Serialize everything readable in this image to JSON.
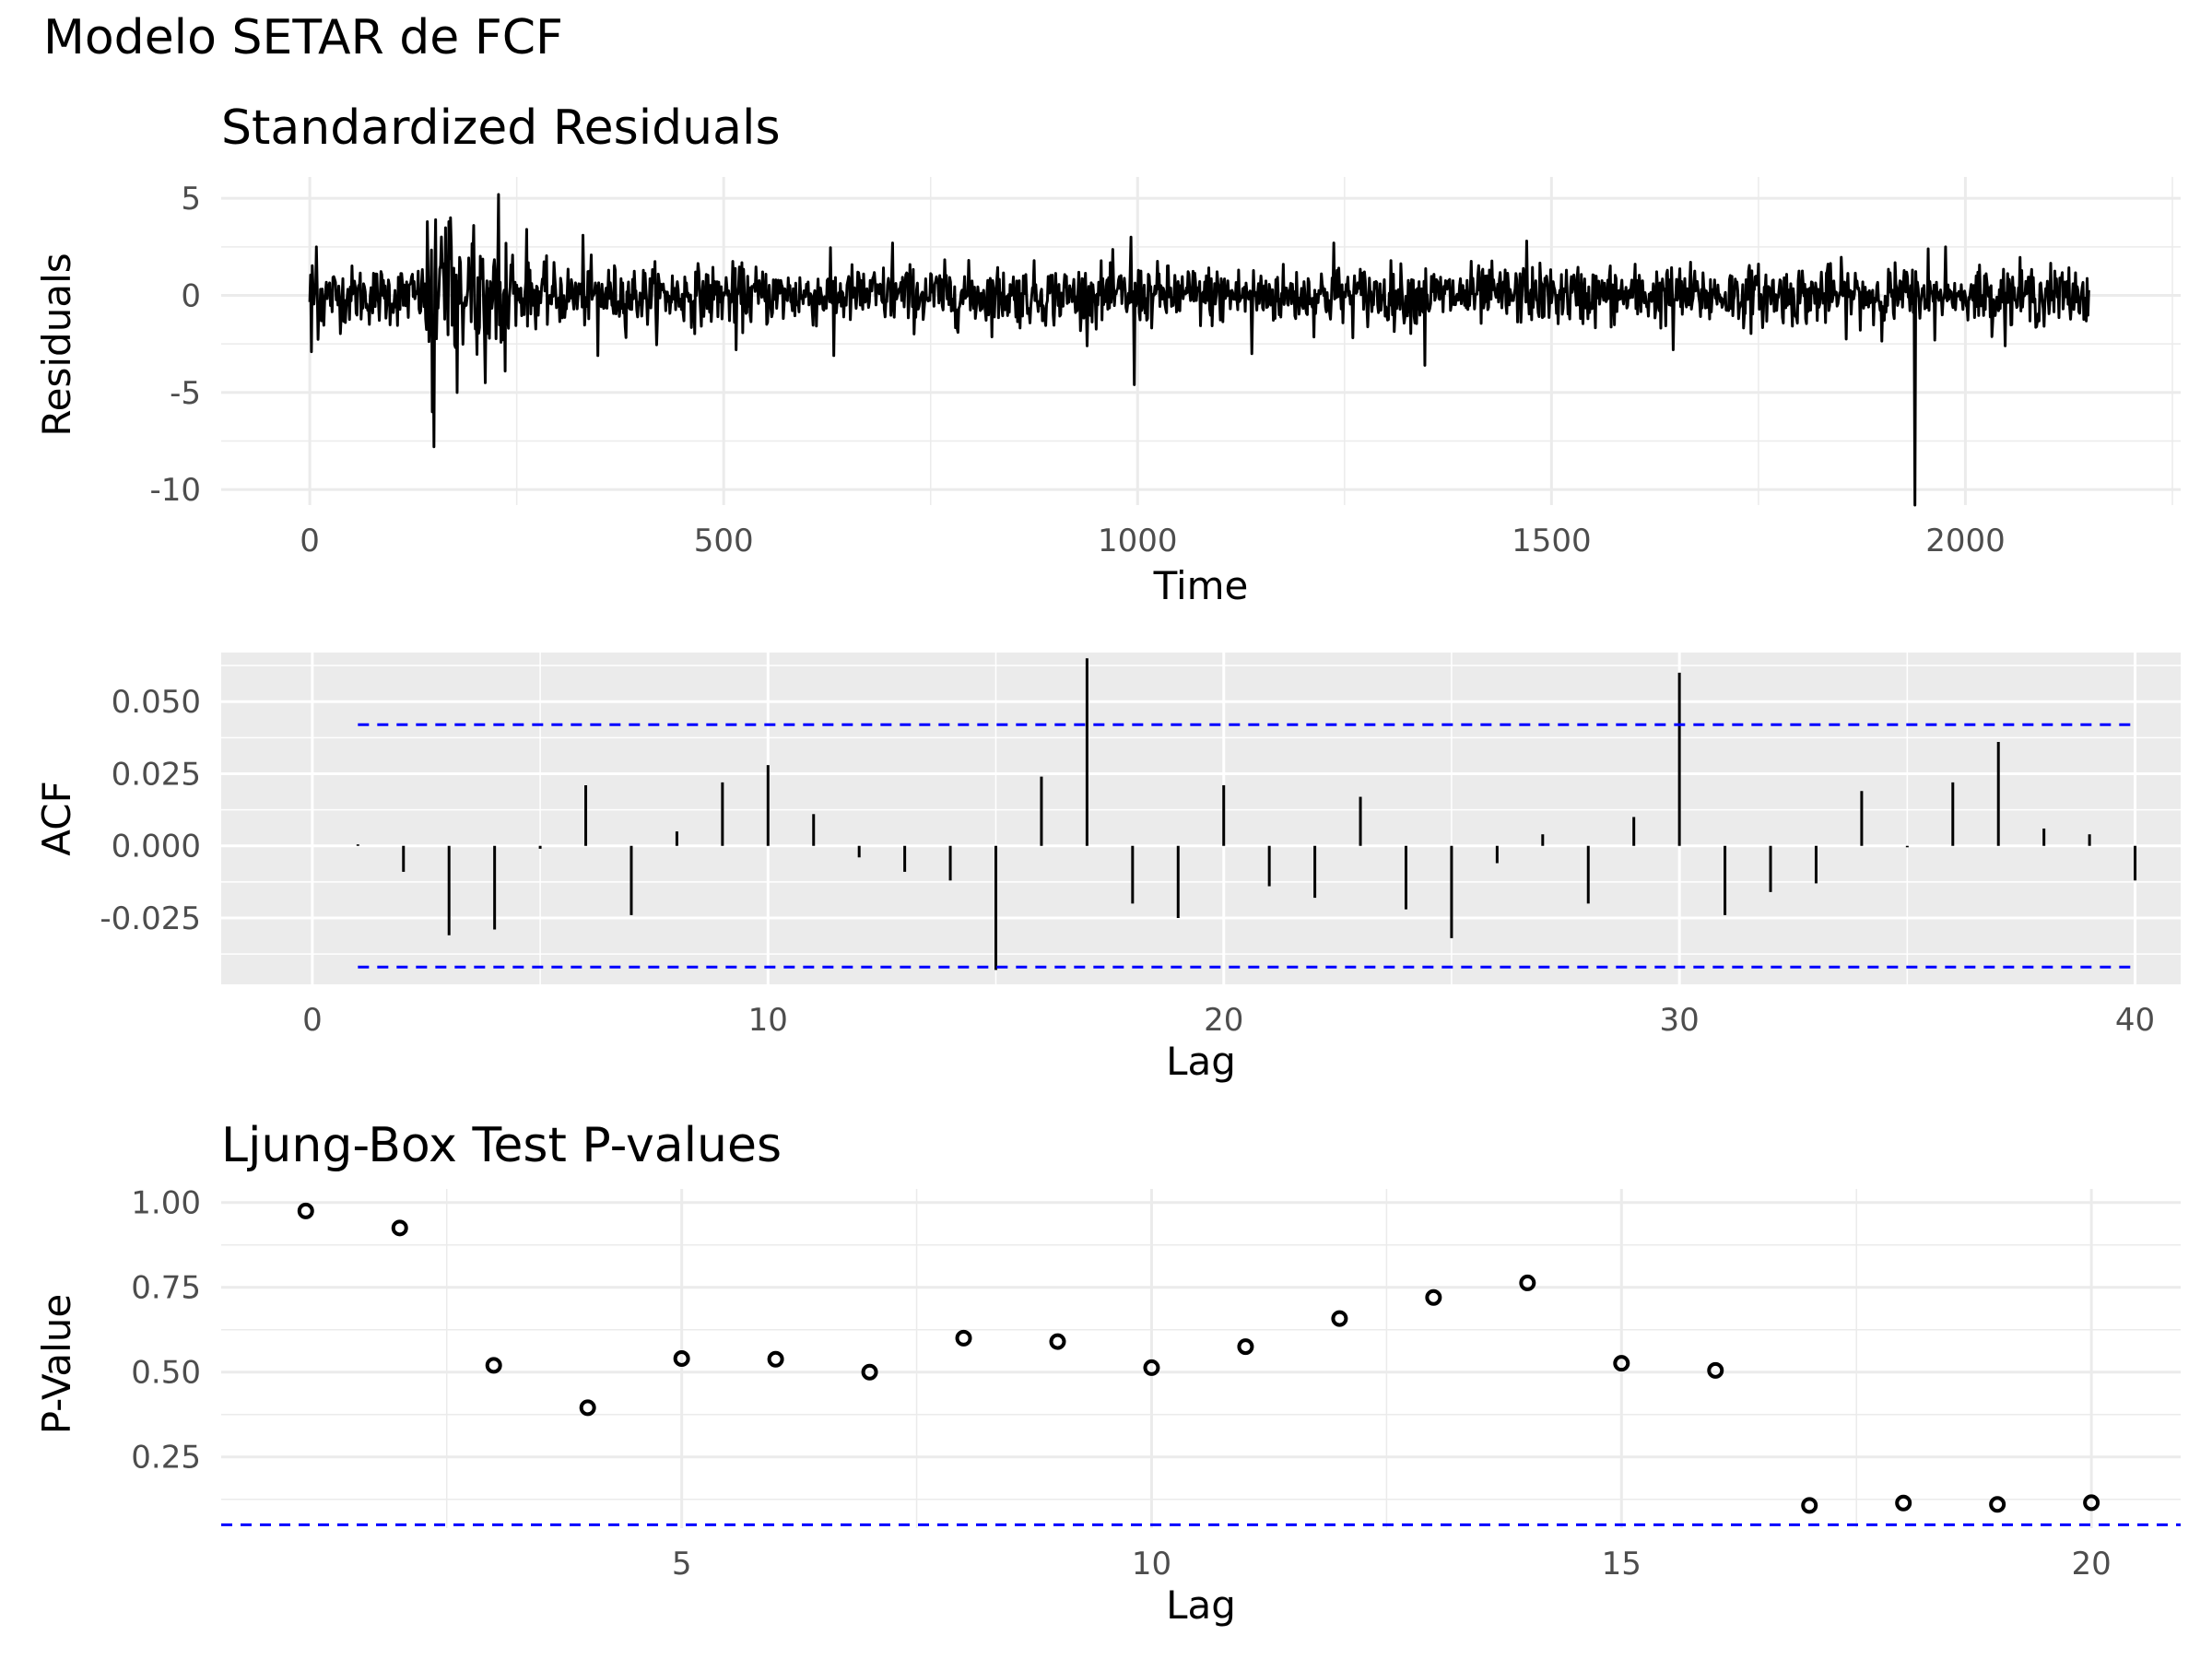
{
  "title": "Modelo SETAR de FCF",
  "chart_data": [
    {
      "type": "line",
      "title": "Standardized Residuals",
      "xlabel": "Time",
      "ylabel": "Residuals",
      "xlim": [
        -107,
        2260
      ],
      "ylim": [
        -10.8,
        6.1
      ],
      "xticks": [
        0,
        500,
        1000,
        1500,
        2000
      ],
      "xtick_labels": [
        "0",
        "500",
        "1000",
        "1500",
        "2000"
      ],
      "yticks": [
        5,
        0,
        -5,
        -10
      ],
      "ytick_labels": [
        "5",
        "0",
        "-5",
        "-10"
      ],
      "n_points": 2150,
      "grid": true,
      "theme": "minimal",
      "line_color": "#000000",
      "notable_points": [
        {
          "x": 2,
          "y": -2.9
        },
        {
          "x": 8,
          "y": 2.5
        },
        {
          "x": 148,
          "y": -6.0
        },
        {
          "x": 150,
          "y": -7.8
        },
        {
          "x": 152,
          "y": 3.9
        },
        {
          "x": 170,
          "y": 4.0
        },
        {
          "x": 178,
          "y": -5.0
        },
        {
          "x": 198,
          "y": 3.6
        },
        {
          "x": 212,
          "y": -4.5
        },
        {
          "x": 228,
          "y": 5.2
        },
        {
          "x": 236,
          "y": -3.9
        },
        {
          "x": 262,
          "y": 3.4
        },
        {
          "x": 330,
          "y": 3.1
        },
        {
          "x": 348,
          "y": -3.1
        },
        {
          "x": 515,
          "y": -2.8
        },
        {
          "x": 633,
          "y": -3.1
        },
        {
          "x": 704,
          "y": 2.7
        },
        {
          "x": 992,
          "y": 3.0
        },
        {
          "x": 996,
          "y": -4.6
        },
        {
          "x": 1138,
          "y": -3.0
        },
        {
          "x": 1237,
          "y": 2.7
        },
        {
          "x": 1347,
          "y": -3.6
        },
        {
          "x": 1470,
          "y": 2.8
        },
        {
          "x": 1647,
          "y": -2.8
        },
        {
          "x": 1939,
          "y": -10.8
        },
        {
          "x": 1955,
          "y": 2.4
        },
        {
          "x": 1963,
          "y": -2.3
        },
        {
          "x": 1976,
          "y": 2.5
        }
      ]
    },
    {
      "type": "bar",
      "title": "",
      "xlabel": "Lag",
      "ylabel": "ACF",
      "xlim": [
        -2,
        41
      ],
      "ylim": [
        -0.048,
        0.067
      ],
      "xticks": [
        0,
        10,
        20,
        30,
        40
      ],
      "xtick_labels": [
        "0",
        "10",
        "20",
        "30",
        "40"
      ],
      "yticks": [
        0.05,
        0.025,
        0.0,
        -0.025
      ],
      "ytick_labels": [
        "0.050",
        "0.025",
        "0.000",
        "-0.025"
      ],
      "grid": true,
      "theme": "grey",
      "confidence_bounds": [
        0.042,
        -0.042
      ],
      "confidence_color": "#0000ff",
      "x": [
        1,
        2,
        3,
        4,
        5,
        6,
        7,
        8,
        9,
        10,
        11,
        12,
        13,
        14,
        15,
        16,
        17,
        18,
        19,
        20,
        21,
        22,
        23,
        24,
        25,
        26,
        27,
        28,
        29,
        30,
        31,
        32,
        33,
        34,
        35,
        36,
        37,
        38,
        39,
        40
      ],
      "values": [
        0.0005,
        -0.009,
        -0.031,
        -0.029,
        -0.001,
        0.021,
        -0.024,
        0.005,
        0.022,
        0.028,
        0.011,
        -0.004,
        -0.009,
        -0.012,
        -0.043,
        0.024,
        0.065,
        -0.02,
        -0.025,
        0.021,
        -0.014,
        -0.018,
        0.017,
        -0.022,
        -0.032,
        -0.006,
        0.004,
        -0.02,
        0.01,
        0.06,
        -0.024,
        -0.016,
        -0.013,
        0.019,
        -0.0005,
        0.022,
        0.036,
        0.006,
        0.004,
        -0.012
      ]
    },
    {
      "type": "scatter",
      "title": "Ljung-Box Test P-values",
      "xlabel": "Lag",
      "ylabel": "P-Value",
      "xlim": [
        0.1,
        20.95
      ],
      "ylim": [
        0.04,
        1.04
      ],
      "xticks": [
        5,
        10,
        15,
        20
      ],
      "xtick_labels": [
        "5",
        "10",
        "15",
        "20"
      ],
      "yticks": [
        1.0,
        0.75,
        0.5,
        0.25
      ],
      "ytick_labels": [
        "1.00",
        "0.75",
        "0.50",
        "0.25"
      ],
      "grid": true,
      "theme": "minimal",
      "reference_line": 0.05,
      "reference_color": "#0000ff",
      "x": [
        1,
        2,
        3,
        4,
        5,
        6,
        7,
        8,
        9,
        10,
        11,
        12,
        13,
        14,
        15,
        16,
        17,
        18,
        19,
        20
      ],
      "values": [
        0.975,
        0.925,
        0.52,
        0.395,
        0.54,
        0.538,
        0.5,
        0.6,
        0.59,
        0.513,
        0.575,
        0.658,
        0.72,
        0.763,
        0.526,
        0.505,
        0.107,
        0.114,
        0.11,
        0.115
      ]
    }
  ]
}
